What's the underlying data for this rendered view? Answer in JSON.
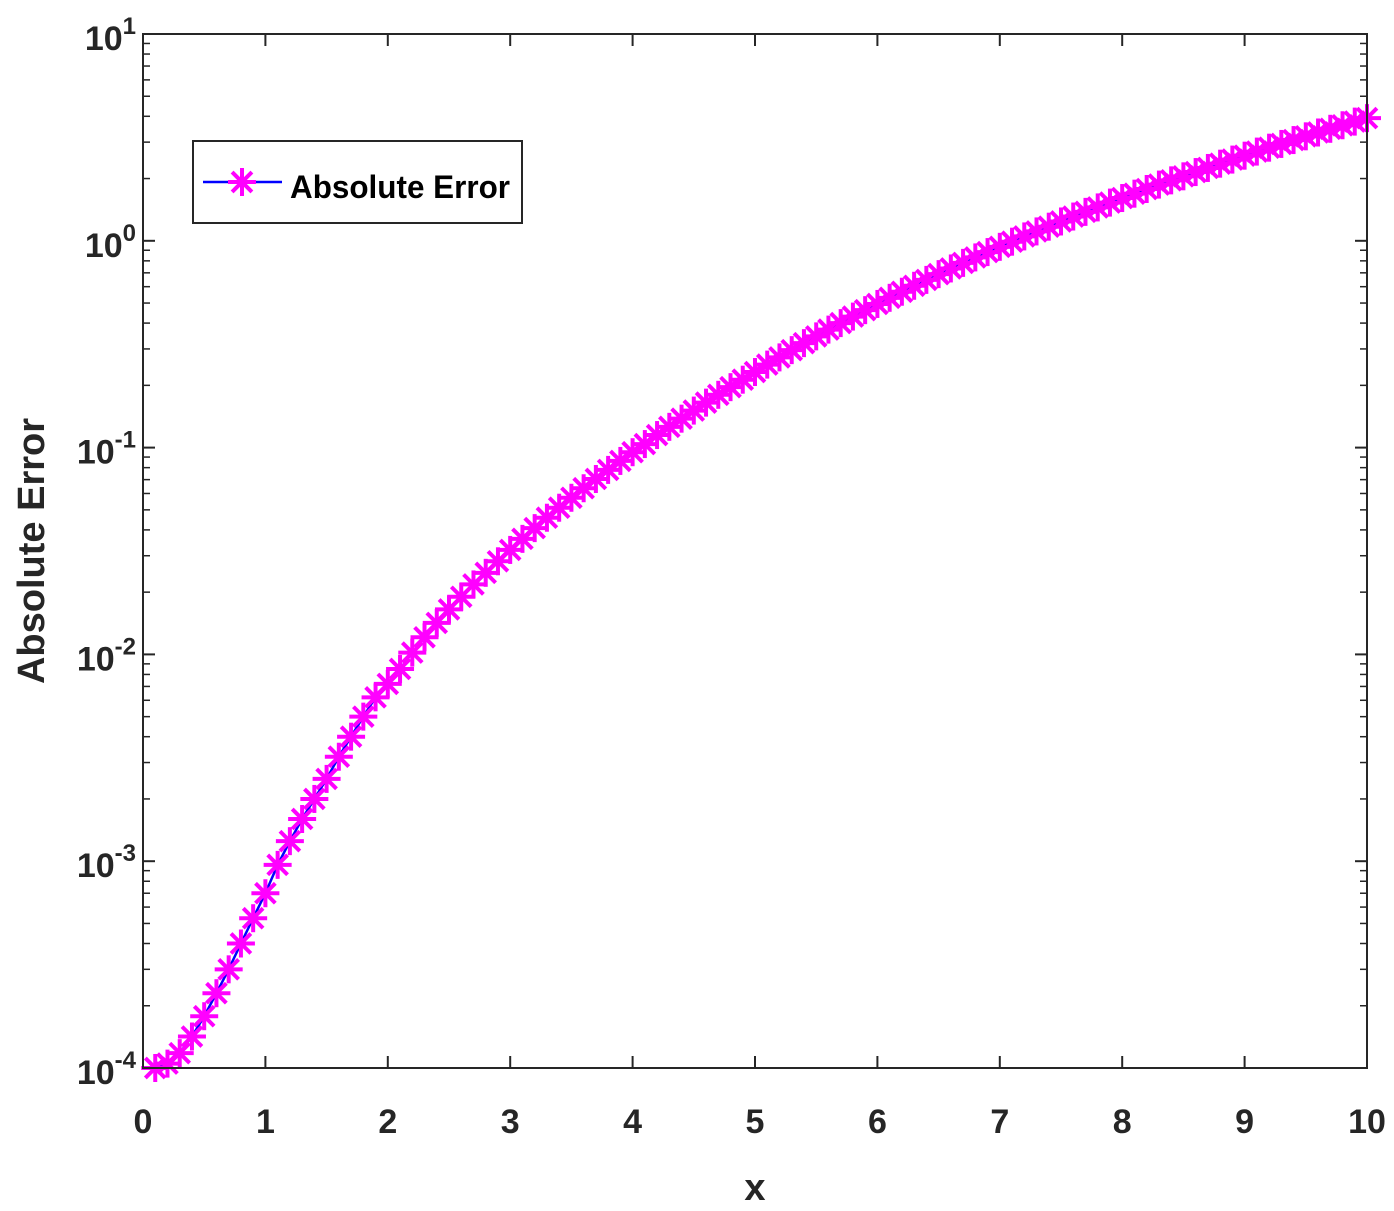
{
  "chart_data": {
    "type": "line",
    "xlabel": "x",
    "ylabel": "Absolute Error",
    "xlim": [
      0,
      10
    ],
    "ylim": [
      0.0001,
      10
    ],
    "yscale": "log",
    "x_ticks": [
      "0",
      "1",
      "2",
      "3",
      "4",
      "5",
      "6",
      "7",
      "8",
      "9",
      "10"
    ],
    "y_ticks": [
      {
        "base": "10",
        "exp": "-4"
      },
      {
        "base": "10",
        "exp": "-3"
      },
      {
        "base": "10",
        "exp": "-2"
      },
      {
        "base": "10",
        "exp": "-1"
      },
      {
        "base": "10",
        "exp": "0"
      },
      {
        "base": "10",
        "exp": "1"
      }
    ],
    "legend": {
      "placement": "top-left",
      "entries": [
        "Absolute Error"
      ]
    },
    "grid": false,
    "series": [
      {
        "name": "Absolute Error",
        "line_color": "#0000ff",
        "marker_color": "#ff00ff",
        "marker": "asterisk",
        "points": [
          [
            0.1,
            0.0001
          ],
          [
            0.2,
            0.000105
          ],
          [
            0.3,
            0.000118
          ],
          [
            0.4,
            0.000142
          ],
          [
            0.5,
            0.000178
          ],
          [
            0.6,
            0.00023
          ],
          [
            0.7,
            0.0003
          ],
          [
            0.8,
            0.0004
          ],
          [
            0.9,
            0.00053
          ],
          [
            1.0,
            0.0007
          ],
          [
            1.1,
            0.00096
          ],
          [
            1.2,
            0.00125
          ],
          [
            1.3,
            0.0016
          ],
          [
            1.4,
            0.002
          ],
          [
            1.5,
            0.0025
          ],
          [
            1.6,
            0.0032
          ],
          [
            1.7,
            0.004
          ],
          [
            1.8,
            0.005
          ],
          [
            1.9,
            0.0062
          ],
          [
            2.0,
            0.0072
          ],
          [
            2.1,
            0.0085
          ],
          [
            2.2,
            0.0102
          ],
          [
            2.3,
            0.0121
          ],
          [
            2.4,
            0.0142
          ],
          [
            2.5,
            0.0165
          ],
          [
            2.6,
            0.019
          ],
          [
            2.7,
            0.0218
          ],
          [
            2.8,
            0.0248
          ],
          [
            2.9,
            0.0282
          ],
          [
            3.0,
            0.032
          ],
          [
            3.1,
            0.0362
          ],
          [
            3.2,
            0.0408
          ],
          [
            3.3,
            0.0458
          ],
          [
            3.4,
            0.0512
          ],
          [
            3.5,
            0.0572
          ],
          [
            3.6,
            0.0636
          ],
          [
            3.7,
            0.0705
          ],
          [
            3.8,
            0.078
          ],
          [
            3.9,
            0.0862
          ],
          [
            4.0,
            0.095
          ],
          [
            4.1,
            0.104
          ],
          [
            4.2,
            0.115
          ],
          [
            4.3,
            0.126
          ],
          [
            4.4,
            0.138
          ],
          [
            4.5,
            0.151
          ],
          [
            4.6,
            0.165
          ],
          [
            4.7,
            0.18
          ],
          [
            4.8,
            0.196
          ],
          [
            4.9,
            0.213
          ],
          [
            5.0,
            0.232
          ],
          [
            5.1,
            0.252
          ],
          [
            5.2,
            0.273
          ],
          [
            5.3,
            0.296
          ],
          [
            5.4,
            0.32
          ],
          [
            5.5,
            0.345
          ],
          [
            5.6,
            0.372
          ],
          [
            5.7,
            0.4
          ],
          [
            5.8,
            0.43
          ],
          [
            5.9,
            0.462
          ],
          [
            6.0,
            0.495
          ],
          [
            6.1,
            0.53
          ],
          [
            6.2,
            0.567
          ],
          [
            6.3,
            0.606
          ],
          [
            6.4,
            0.647
          ],
          [
            6.5,
            0.69
          ],
          [
            6.6,
            0.735
          ],
          [
            6.7,
            0.782
          ],
          [
            6.8,
            0.831
          ],
          [
            6.9,
            0.882
          ],
          [
            7.0,
            0.935
          ],
          [
            7.1,
            0.99
          ],
          [
            7.2,
            1.05
          ],
          [
            7.3,
            1.11
          ],
          [
            7.4,
            1.17
          ],
          [
            7.5,
            1.24
          ],
          [
            7.6,
            1.31
          ],
          [
            7.7,
            1.38
          ],
          [
            7.8,
            1.45
          ],
          [
            7.9,
            1.53
          ],
          [
            8.0,
            1.61
          ],
          [
            8.1,
            1.69
          ],
          [
            8.2,
            1.78
          ],
          [
            8.3,
            1.87
          ],
          [
            8.4,
            1.96
          ],
          [
            8.5,
            2.05
          ],
          [
            8.6,
            2.15
          ],
          [
            8.7,
            2.25
          ],
          [
            8.8,
            2.36
          ],
          [
            8.9,
            2.47
          ],
          [
            9.0,
            2.58
          ],
          [
            9.1,
            2.7
          ],
          [
            9.2,
            2.82
          ],
          [
            9.3,
            2.94
          ],
          [
            9.4,
            3.07
          ],
          [
            9.5,
            3.2
          ],
          [
            9.6,
            3.34
          ],
          [
            9.7,
            3.48
          ],
          [
            9.8,
            3.62
          ],
          [
            9.9,
            3.77
          ],
          [
            10.0,
            3.92
          ]
        ]
      }
    ]
  }
}
